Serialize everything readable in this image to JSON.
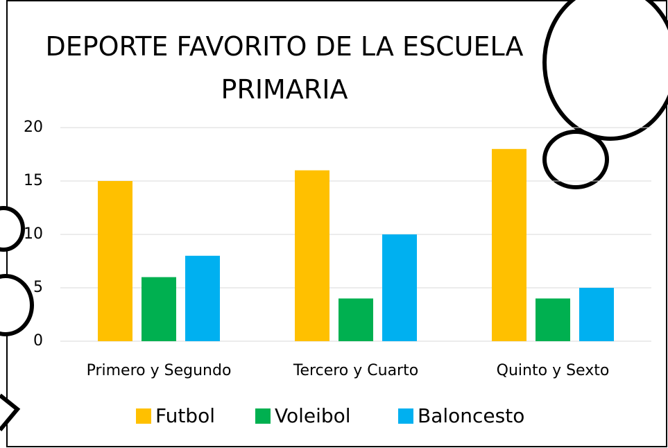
{
  "chart_data": {
    "type": "bar",
    "title": "DEPORTE FAVORITO DE LA ESCUELA PRIMARIA",
    "categories": [
      "Primero y Segundo",
      "Tercero y Cuarto",
      "Quinto y Sexto"
    ],
    "series": [
      {
        "name": "Futbol",
        "color": "#FFC000",
        "values": [
          15,
          16,
          18
        ]
      },
      {
        "name": "Voleibol",
        "color": "#00B050",
        "values": [
          6,
          4,
          4
        ]
      },
      {
        "name": "Baloncesto",
        "color": "#00B0F0",
        "values": [
          8,
          10,
          5
        ]
      }
    ],
    "ylim": [
      0,
      20
    ],
    "yticks": [
      0,
      5,
      10,
      15,
      20
    ],
    "grid": true,
    "legend": "bottom"
  }
}
